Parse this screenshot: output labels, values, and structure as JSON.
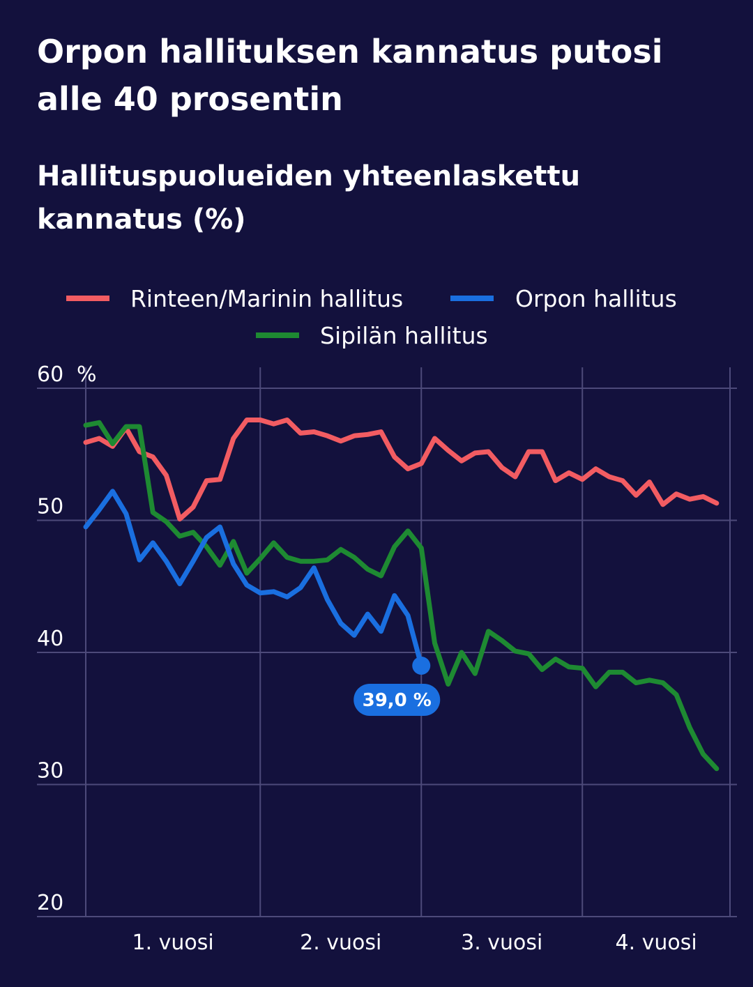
{
  "title": "Orpon hallituksen kannatus putosi alle 40 prosentin",
  "subtitle": "Hallituspuolueiden yhteenlaskettu kannatus (%)",
  "colors": {
    "background": "#13113d",
    "grid": "#4d4a7a",
    "rinne_marin": "#f25c62",
    "orpo": "#1a6fe0",
    "sipila": "#1e8a32"
  },
  "chart_data": {
    "type": "line",
    "ylim": [
      20,
      60
    ],
    "yticks": [
      "20",
      "30",
      "40",
      "50",
      "60"
    ],
    "y_unit": "%",
    "xlim": [
      0,
      48
    ],
    "x_ticks": [
      {
        "x": 0,
        "label": ""
      },
      {
        "x": 13,
        "label": "1. vuosi"
      },
      {
        "x": 25,
        "label": "2. vuosi"
      },
      {
        "x": 37,
        "label": "3. vuosi"
      },
      {
        "x": 48,
        "label": "4. vuosi"
      }
    ],
    "series": [
      {
        "name": "Rinteen/Marinin hallitus",
        "color": "#f25c62",
        "values": [
          55.9,
          56.2,
          55.6,
          57.0,
          55.2,
          54.8,
          53.4,
          50.1,
          51.0,
          53.0,
          53.1,
          56.2,
          57.6,
          57.6,
          57.3,
          57.6,
          56.6,
          56.7,
          56.4,
          56.0,
          56.4,
          56.5,
          56.7,
          54.8,
          53.9,
          54.3,
          56.2,
          55.3,
          54.5,
          55.1,
          55.2,
          54.0,
          53.3,
          55.2,
          55.2,
          53.0,
          53.6,
          53.1,
          53.9,
          53.3,
          53.0,
          51.9,
          52.9,
          51.2,
          52.0,
          51.6,
          51.8,
          51.3
        ]
      },
      {
        "name": "Orpon hallitus",
        "color": "#1a6fe0",
        "values": [
          49.5,
          50.8,
          52.2,
          50.5,
          47.0,
          48.3,
          46.9,
          45.2,
          46.9,
          48.7,
          49.5,
          46.7,
          45.1,
          44.5,
          44.6,
          44.2,
          44.9,
          46.4,
          44.0,
          42.2,
          41.3,
          42.9,
          41.6,
          44.3,
          42.8,
          39.0
        ],
        "end_label": "39,0 %"
      },
      {
        "name": "Sipilän hallitus",
        "color": "#1e8a32",
        "values": [
          57.2,
          57.4,
          55.8,
          57.1,
          57.1,
          50.6,
          49.9,
          48.8,
          49.1,
          48.0,
          46.6,
          48.4,
          46.0,
          47.1,
          48.3,
          47.2,
          46.9,
          46.9,
          47.0,
          47.8,
          47.2,
          46.3,
          45.8,
          48.0,
          49.2,
          47.9,
          40.7,
          37.6,
          40.0,
          38.4,
          41.6,
          40.9,
          40.1,
          39.9,
          38.7,
          39.5,
          38.9,
          38.8,
          37.4,
          38.5,
          38.5,
          37.7,
          37.9,
          37.7,
          36.8,
          34.3,
          32.3,
          31.2
        ]
      }
    ]
  }
}
